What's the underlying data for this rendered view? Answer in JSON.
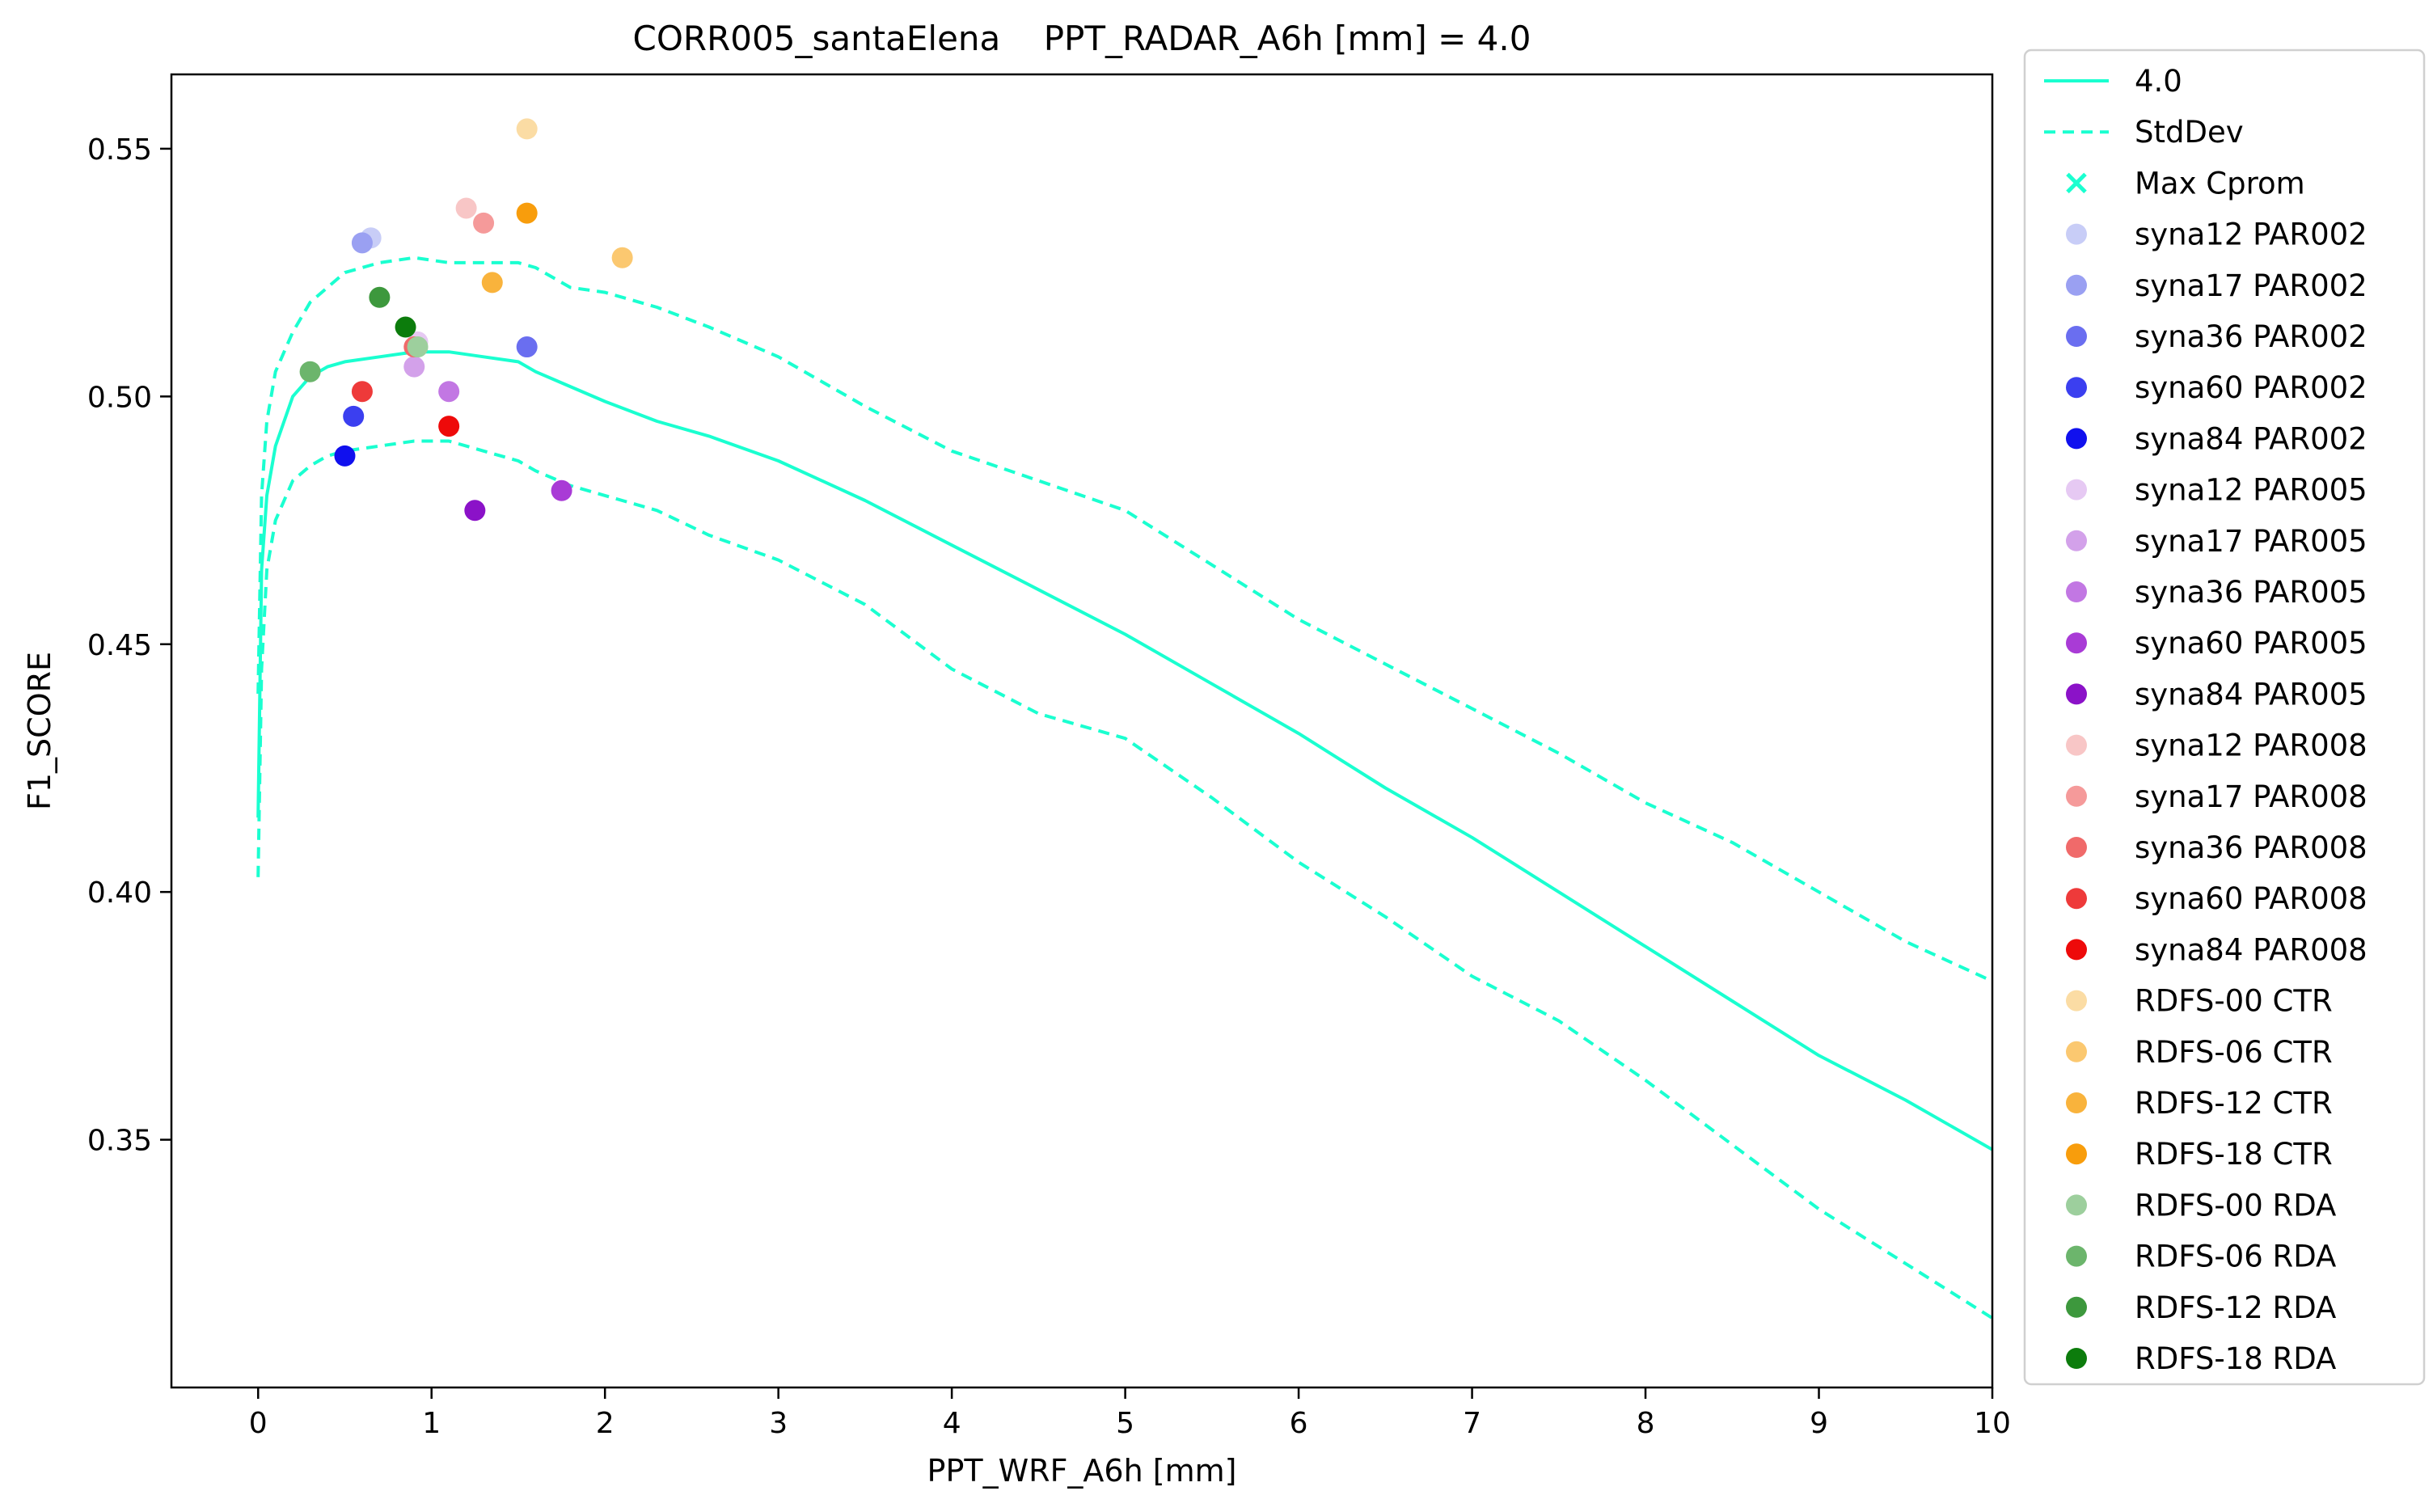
{
  "chart_data": {
    "type": "scatter",
    "title": "CORR005_santaElena    PPT_RADAR_A6h [mm] = 4.0",
    "xlabel": "PPT_WRF_A6h [mm]",
    "ylabel": "F1_SCORE",
    "xlim": [
      -0.5,
      10
    ],
    "ylim": [
      0.3,
      0.565
    ],
    "xticks": [
      0,
      1,
      2,
      3,
      4,
      5,
      6,
      7,
      8,
      9,
      10
    ],
    "yticks": [
      0.35,
      0.4,
      0.45,
      0.5,
      0.55
    ],
    "xtick_labels": [
      "0",
      "1",
      "2",
      "3",
      "4",
      "5",
      "6",
      "7",
      "8",
      "9",
      "10"
    ],
    "ytick_labels": [
      "0.35",
      "0.40",
      "0.45",
      "0.50",
      "0.55"
    ],
    "grid": false,
    "legend_position": "outside-right",
    "lines": [
      {
        "name": "4.0",
        "style": "solid",
        "color": "#1affd0",
        "x": [
          0,
          0.02,
          0.05,
          0.1,
          0.2,
          0.3,
          0.4,
          0.5,
          0.7,
          0.9,
          1.1,
          1.3,
          1.5,
          1.6,
          1.8,
          2.0,
          2.3,
          2.6,
          3.0,
          3.5,
          4.0,
          4.5,
          5.0,
          5.5,
          6.0,
          6.5,
          7.0,
          7.5,
          8.0,
          8.5,
          9.0,
          9.5,
          10.0
        ],
        "y": [
          0.415,
          0.465,
          0.48,
          0.49,
          0.5,
          0.504,
          0.506,
          0.507,
          0.508,
          0.509,
          0.509,
          0.508,
          0.507,
          0.505,
          0.502,
          0.499,
          0.495,
          0.492,
          0.487,
          0.479,
          0.47,
          0.461,
          0.452,
          0.442,
          0.432,
          0.421,
          0.411,
          0.4,
          0.389,
          0.378,
          0.367,
          0.358,
          0.348
        ]
      },
      {
        "name": "StdDev",
        "style": "dashed",
        "color": "#1affd0",
        "x": [
          0,
          0.02,
          0.05,
          0.1,
          0.2,
          0.3,
          0.4,
          0.5,
          0.7,
          0.9,
          1.1,
          1.3,
          1.5,
          1.6,
          1.8,
          2.0,
          2.3,
          2.6,
          3.0,
          3.5,
          4.0,
          4.5,
          5.0,
          5.5,
          6.0,
          6.5,
          7.0,
          7.5,
          8.0,
          8.5,
          9.0,
          9.5,
          10.0
        ],
        "y": [
          0.44,
          0.48,
          0.495,
          0.505,
          0.513,
          0.519,
          0.522,
          0.525,
          0.527,
          0.528,
          0.527,
          0.527,
          0.527,
          0.526,
          0.522,
          0.521,
          0.518,
          0.514,
          0.508,
          0.498,
          0.489,
          0.483,
          0.477,
          0.466,
          0.455,
          0.446,
          0.437,
          0.428,
          0.418,
          0.41,
          0.4,
          0.39,
          0.382
        ]
      },
      {
        "name": "",
        "style": "dashed",
        "color": "#1affd0",
        "x": [
          0,
          0.02,
          0.05,
          0.1,
          0.2,
          0.3,
          0.4,
          0.5,
          0.7,
          0.9,
          1.1,
          1.3,
          1.5,
          1.6,
          1.8,
          2.0,
          2.3,
          2.6,
          3.0,
          3.5,
          4.0,
          4.5,
          5.0,
          5.5,
          6.0,
          6.5,
          7.0,
          7.5,
          8.0,
          8.5,
          9.0,
          9.5,
          10.0
        ],
        "y": [
          0.403,
          0.445,
          0.465,
          0.475,
          0.483,
          0.486,
          0.488,
          0.489,
          0.49,
          0.491,
          0.491,
          0.489,
          0.487,
          0.485,
          0.482,
          0.48,
          0.477,
          0.472,
          0.467,
          0.458,
          0.445,
          0.436,
          0.431,
          0.419,
          0.406,
          0.395,
          0.383,
          0.374,
          0.362,
          0.349,
          0.336,
          0.325,
          0.314
        ]
      }
    ],
    "max_marker": {
      "name": "Max Cprom",
      "marker": "x",
      "color": "#1affd0"
    },
    "series": [
      {
        "name": "syna12 PAR002",
        "color": "#c8cdf7",
        "x": 0.65,
        "y": 0.532
      },
      {
        "name": "syna17 PAR002",
        "color": "#9aa0f2",
        "x": 0.6,
        "y": 0.531
      },
      {
        "name": "syna36 PAR002",
        "color": "#6a6ef0",
        "x": 1.55,
        "y": 0.51
      },
      {
        "name": "syna60 PAR002",
        "color": "#3b3ff0",
        "x": 0.55,
        "y": 0.496
      },
      {
        "name": "syna84 PAR002",
        "color": "#1010ee",
        "x": 0.5,
        "y": 0.488
      },
      {
        "name": "syna12 PAR005",
        "color": "#e6c9f3",
        "x": 0.92,
        "y": 0.511
      },
      {
        "name": "syna17 PAR005",
        "color": "#d3a1ea",
        "x": 0.9,
        "y": 0.506
      },
      {
        "name": "syna36 PAR005",
        "color": "#c277e3",
        "x": 1.1,
        "y": 0.501
      },
      {
        "name": "syna60 PAR005",
        "color": "#a93bd6",
        "x": 1.75,
        "y": 0.481
      },
      {
        "name": "syna84 PAR005",
        "color": "#8b12c8",
        "x": 1.25,
        "y": 0.477
      },
      {
        "name": "syna12 PAR008",
        "color": "#f8c6c6",
        "x": 1.2,
        "y": 0.538
      },
      {
        "name": "syna17 PAR008",
        "color": "#f59a9a",
        "x": 1.3,
        "y": 0.535
      },
      {
        "name": "syna36 PAR008",
        "color": "#f06a6a",
        "x": 0.9,
        "y": 0.51
      },
      {
        "name": "syna60 PAR008",
        "color": "#ee3a3a",
        "x": 0.6,
        "y": 0.501
      },
      {
        "name": "syna84 PAR008",
        "color": "#ee0a0a",
        "x": 1.1,
        "y": 0.494
      },
      {
        "name": "RDFS-00 CTR",
        "color": "#fbdca4",
        "x": 1.55,
        "y": 0.554
      },
      {
        "name": "RDFS-06 CTR",
        "color": "#fbc870",
        "x": 2.1,
        "y": 0.528
      },
      {
        "name": "RDFS-12 CTR",
        "color": "#f9b33c",
        "x": 1.35,
        "y": 0.523
      },
      {
        "name": "RDFS-18 CTR",
        "color": "#f89d0c",
        "x": 1.55,
        "y": 0.537
      },
      {
        "name": "RDFS-00 RDA",
        "color": "#9dcf9d",
        "x": 0.92,
        "y": 0.51
      },
      {
        "name": "RDFS-06 RDA",
        "color": "#6cb56c",
        "x": 0.3,
        "y": 0.505
      },
      {
        "name": "RDFS-12 RDA",
        "color": "#3d983d",
        "x": 0.7,
        "y": 0.52
      },
      {
        "name": "RDFS-18 RDA",
        "color": "#0c7c0c",
        "x": 0.85,
        "y": 0.514
      }
    ]
  }
}
